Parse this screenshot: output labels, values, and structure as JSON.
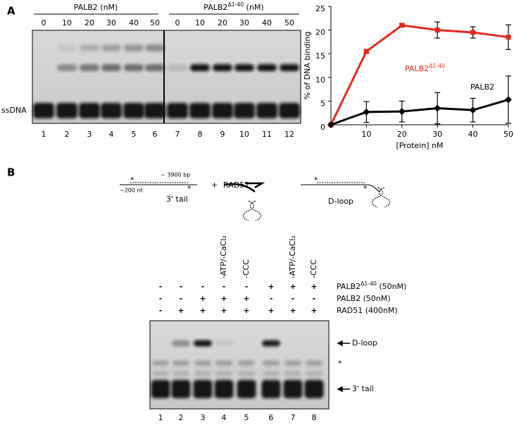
{
  "panel_a": {
    "label": "A",
    "gel_left_title": "PALB2 (nM)",
    "gel_right_title": "PALB2Δ1-40 (nM)",
    "concentrations_left": [
      "0",
      "10",
      "20",
      "30",
      "40",
      "50"
    ],
    "concentrations_right": [
      "0",
      "10",
      "20",
      "30",
      "40",
      "50"
    ],
    "lanes": [
      "1",
      "2",
      "3",
      "4",
      "5",
      "6",
      "7",
      "8",
      "9",
      "10",
      "11",
      "12"
    ],
    "band_label": "ssDNA"
  },
  "chart_data": {
    "type": "line",
    "y_label": "% of DNA binding",
    "x_label": "[Protein] nM",
    "x": [
      0,
      10,
      20,
      30,
      40,
      50
    ],
    "xlim": [
      0,
      50
    ],
    "xticks": [
      10,
      20,
      30,
      40,
      50
    ],
    "ylim": [
      0,
      25
    ],
    "yticks": [
      0,
      5,
      10,
      15,
      20,
      25
    ],
    "series": [
      {
        "name": "PALB2Δ1-40",
        "color": "#e8281e",
        "marker": "square",
        "values": [
          0,
          15.5,
          21,
          20,
          19.5,
          18.5
        ],
        "errors": [
          0,
          0.4,
          0.3,
          1.7,
          1.2,
          2.6
        ]
      },
      {
        "name": "PALB2",
        "color": "#000000",
        "marker": "diamond",
        "values": [
          0,
          2.7,
          2.8,
          3.5,
          3.1,
          5.3
        ],
        "errors": [
          0,
          2.2,
          2.2,
          3.3,
          2.5,
          5
        ]
      }
    ]
  },
  "panel_b": {
    "label": "B",
    "diagram": {
      "length": "~ 3900 bp",
      "overhang": "~200 nt",
      "substrate": "3' tail",
      "plus": "+",
      "protein": "RAD51",
      "product": "D-loop"
    },
    "lane_notes": [
      null,
      null,
      null,
      "-ATP/-CaCl₂",
      "-CCC",
      null,
      "-ATP/-CaCl₂",
      "-CCC"
    ],
    "conditions": [
      {
        "name": "PALB2Δ1-40 (50nM)",
        "signs": [
          "-",
          "-",
          "-",
          "-",
          "-",
          "+",
          "+",
          "+"
        ]
      },
      {
        "name": "PALB2 (50nM)",
        "signs": [
          "-",
          "-",
          "+",
          "+",
          "+",
          "-",
          "-",
          "-"
        ]
      },
      {
        "name": "RAD51 (400nM)",
        "signs": [
          "-",
          "+",
          "+",
          "+",
          "+",
          "+",
          "+",
          "+"
        ]
      }
    ],
    "lanes": [
      "1",
      "2",
      "3",
      "4",
      "5",
      "6",
      "7",
      "8"
    ],
    "bands": [
      "D-loop",
      "*",
      "3' tail"
    ]
  }
}
